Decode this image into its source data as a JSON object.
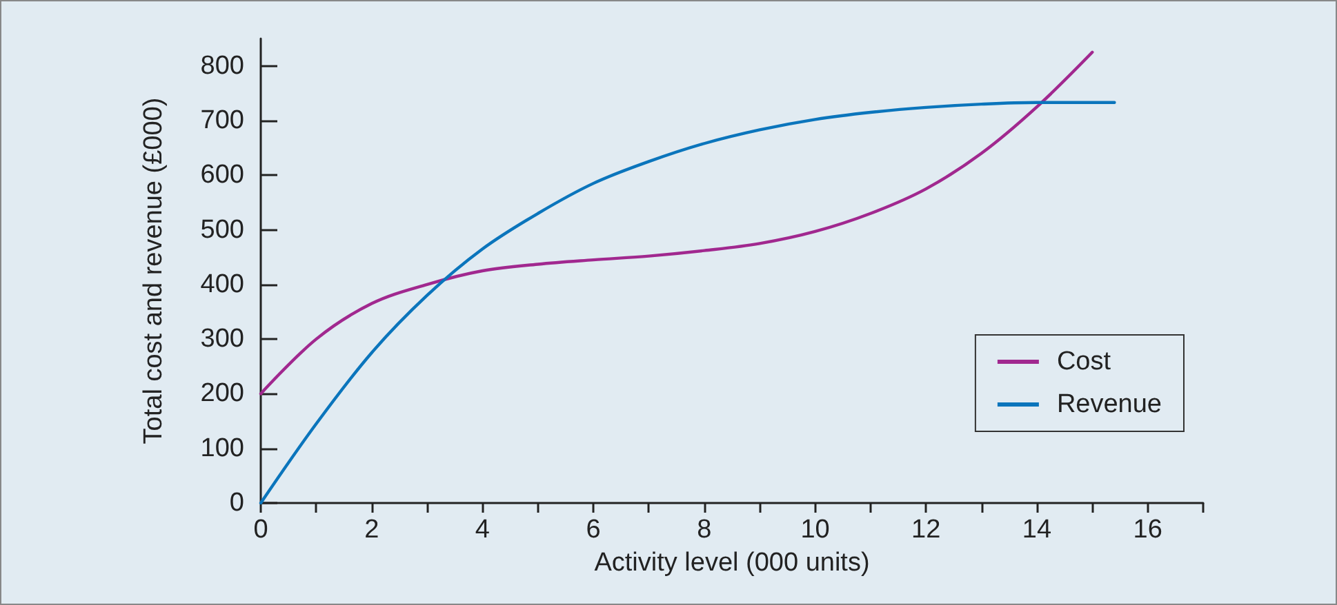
{
  "chart_data": {
    "type": "line",
    "xlabel": "Activity level (000 units)",
    "ylabel": "Total cost and revenue (£000)",
    "series": [
      {
        "name": "Cost",
        "color": "#a1288f",
        "x": [
          0,
          1,
          2,
          3,
          4,
          5,
          6,
          7,
          8,
          9,
          10,
          11,
          12,
          13,
          14,
          15
        ],
        "values": [
          200,
          300,
          365,
          400,
          425,
          437,
          445,
          452,
          462,
          475,
          497,
          530,
          575,
          640,
          725,
          825
        ]
      },
      {
        "name": "Revenue",
        "color": "#0b75bc",
        "x": [
          0,
          1,
          2,
          3,
          4,
          5,
          6,
          7,
          8,
          9,
          10,
          11,
          12,
          13,
          14,
          15.4
        ],
        "values": [
          0,
          145,
          275,
          380,
          465,
          530,
          585,
          625,
          658,
          683,
          702,
          715,
          724,
          730,
          733,
          733
        ]
      }
    ],
    "xlim": [
      0,
      17
    ],
    "xticks": [
      0,
      {
        "value": 1,
        "label": null
      },
      2,
      {
        "value": 3,
        "label": null
      },
      4,
      {
        "value": 5,
        "label": null
      },
      6,
      {
        "value": 7,
        "label": null
      },
      8,
      {
        "value": 9,
        "label": null
      },
      10,
      {
        "value": 11,
        "label": null
      },
      12,
      {
        "value": 13,
        "label": null
      },
      14,
      {
        "value": 15,
        "label": null
      },
      16,
      {
        "value": 17,
        "label": null
      }
    ],
    "ylim": [
      0,
      850
    ],
    "yticks": [
      0,
      100,
      200,
      300,
      400,
      500,
      600,
      700,
      800
    ],
    "grid": false,
    "legend": "bottom right",
    "marker": "none",
    "line_style": "solid"
  }
}
